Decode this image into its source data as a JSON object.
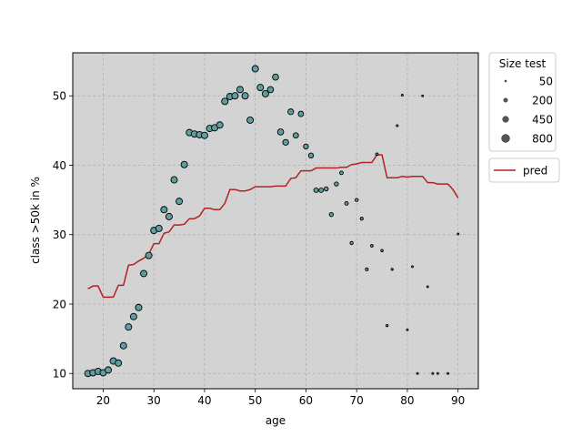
{
  "chart_data": {
    "type": "scatter",
    "xlabel": "age",
    "ylabel": "class >50k in %",
    "xlim": [
      14,
      94
    ],
    "ylim": [
      7.8,
      56.2
    ],
    "xticks": [
      20,
      30,
      40,
      50,
      60,
      70,
      80,
      90
    ],
    "yticks": [
      10,
      20,
      30,
      40,
      50
    ],
    "grid": true,
    "plot_background": "#d3d3d3",
    "size_legend": {
      "title": "Size test",
      "placement": "outside-top-right",
      "entries": [
        {
          "label": "50",
          "size": 50
        },
        {
          "label": "200",
          "size": 200
        },
        {
          "label": "450",
          "size": 450
        },
        {
          "label": "800",
          "size": 800
        }
      ]
    },
    "line_legend": {
      "placement": "outside-right",
      "entries": [
        {
          "label": "pred",
          "color": "#b22222"
        }
      ]
    },
    "points": {
      "color": "#5f9ea0",
      "edge_color": "#000000",
      "x": [
        17,
        18,
        19,
        20,
        21,
        22,
        23,
        24,
        25,
        26,
        27,
        28,
        29,
        30,
        31,
        32,
        33,
        34,
        35,
        36,
        37,
        38,
        39,
        40,
        41,
        42,
        43,
        44,
        45,
        46,
        47,
        48,
        49,
        50,
        51,
        52,
        53,
        54,
        55,
        56,
        57,
        58,
        59,
        60,
        61,
        62,
        63,
        64,
        65,
        66,
        67,
        68,
        69,
        70,
        71,
        72,
        73,
        74,
        75,
        76,
        77,
        78,
        79,
        80,
        81,
        82,
        83,
        84,
        85,
        86,
        88,
        90
      ],
      "y": [
        10,
        10.1,
        10.3,
        10.1,
        10.5,
        11.8,
        11.5,
        14,
        16.7,
        18.2,
        19.5,
        24.4,
        27,
        30.6,
        30.9,
        33.6,
        32.6,
        37.9,
        34.8,
        40.1,
        44.7,
        44.5,
        44.4,
        44.3,
        45.3,
        45.4,
        45.8,
        49.2,
        49.9,
        50,
        50.9,
        50,
        46.5,
        53.9,
        51.2,
        50.3,
        50.9,
        52.7,
        44.8,
        43.3,
        47.7,
        44.3,
        47.4,
        42.7,
        41.4,
        36.4,
        36.4,
        36.6,
        32.9,
        37.3,
        38.9,
        34.5,
        28.8,
        35,
        32.3,
        25,
        28.4,
        41.6,
        27.7,
        16.9,
        25,
        45.7,
        50.1,
        16.3,
        25.4,
        10,
        50,
        22.5,
        10,
        10,
        10,
        30.1
      ],
      "sizes": [
        500,
        500,
        500,
        500,
        500,
        500,
        500,
        500,
        500,
        500,
        500,
        500,
        500,
        500,
        500,
        500,
        500,
        500,
        500,
        500,
        500,
        500,
        500,
        500,
        500,
        500,
        500,
        500,
        500,
        500,
        500,
        500,
        500,
        500,
        500,
        500,
        450,
        450,
        450,
        400,
        400,
        350,
        350,
        300,
        300,
        250,
        250,
        200,
        200,
        200,
        150,
        150,
        120,
        120,
        100,
        100,
        80,
        80,
        70,
        60,
        50,
        50,
        40,
        40,
        40,
        30,
        30,
        30,
        20,
        20,
        20,
        20
      ]
    },
    "series": [
      {
        "name": "pred",
        "color": "#b22222",
        "x": [
          17,
          18,
          19,
          20,
          21,
          22,
          23,
          24,
          25,
          26,
          27,
          28,
          29,
          30,
          31,
          32,
          33,
          34,
          35,
          36,
          37,
          38,
          39,
          40,
          41,
          42,
          43,
          44,
          45,
          46,
          47,
          48,
          49,
          50,
          51,
          52,
          53,
          54,
          55,
          56,
          57,
          58,
          59,
          60,
          61,
          62,
          63,
          64,
          65,
          66,
          67,
          68,
          69,
          70,
          71,
          72,
          73,
          74,
          75,
          76,
          77,
          78,
          79,
          80,
          81,
          82,
          83,
          84,
          85,
          86,
          87,
          88,
          89,
          90
        ],
        "y": [
          22.2,
          22.6,
          22.6,
          21,
          21,
          21,
          22.7,
          22.7,
          25.6,
          25.7,
          26.2,
          26.6,
          27.2,
          28.7,
          28.7,
          30.2,
          30.4,
          31.4,
          31.4,
          31.5,
          32.3,
          32.3,
          32.7,
          33.8,
          33.8,
          33.6,
          33.6,
          34.5,
          36.5,
          36.5,
          36.3,
          36.3,
          36.5,
          36.9,
          36.9,
          36.9,
          36.9,
          37,
          37,
          37,
          38.1,
          38.2,
          39.2,
          39.2,
          39.2,
          39.6,
          39.6,
          39.6,
          39.6,
          39.6,
          39.7,
          39.7,
          40.1,
          40.2,
          40.4,
          40.4,
          40.4,
          41.5,
          41.5,
          38.2,
          38.2,
          38.2,
          38.4,
          38.3,
          38.4,
          38.4,
          38.4,
          37.5,
          37.5,
          37.3,
          37.3,
          37.3,
          36.5,
          35.3
        ]
      }
    ]
  }
}
